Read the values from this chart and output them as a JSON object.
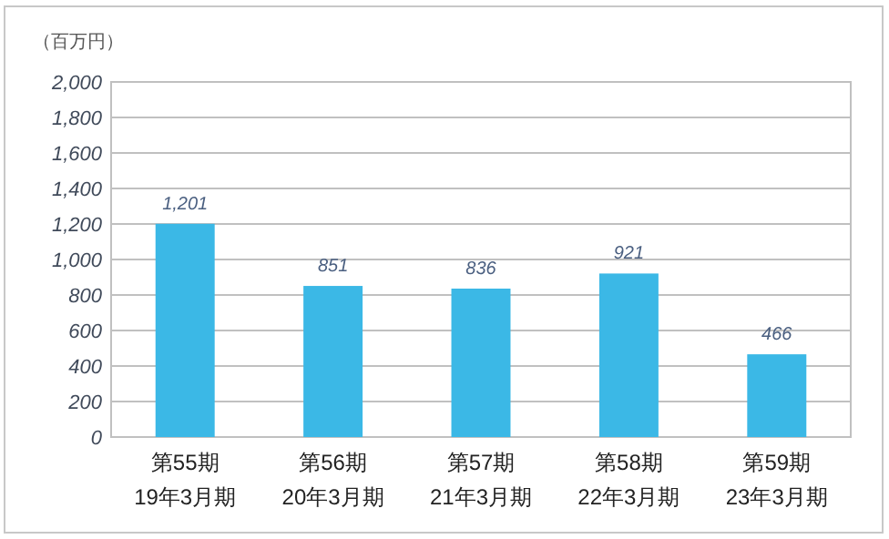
{
  "chart_data": {
    "type": "bar",
    "ylabel": "（百万円）",
    "categories": [
      "第55期\n19年3月期",
      "第56期\n20年3月期",
      "第57期\n21年3月期",
      "第58期\n22年3月期",
      "第59期\n23年3月期"
    ],
    "values": [
      1201,
      851,
      836,
      921,
      466
    ],
    "color": "#3bb8e6",
    "ylim": [
      0,
      2000
    ],
    "yticks": [
      {
        "value": 0,
        "label": "0"
      },
      {
        "value": 200,
        "label": "200"
      },
      {
        "value": 400,
        "label": "400"
      },
      {
        "value": 600,
        "label": "600"
      },
      {
        "value": 800,
        "label": "800"
      },
      {
        "value": 1000,
        "label": "1,000"
      },
      {
        "value": 1200,
        "label": "1,200"
      },
      {
        "value": 1400,
        "label": "1,400"
      },
      {
        "value": 1600,
        "label": "1,600"
      },
      {
        "value": 1800,
        "label": "1,800"
      },
      {
        "value": 2000,
        "label": "2,000"
      }
    ],
    "value_labels": [
      "1,201",
      "851",
      "836",
      "921",
      "466"
    ],
    "grid": "y"
  }
}
